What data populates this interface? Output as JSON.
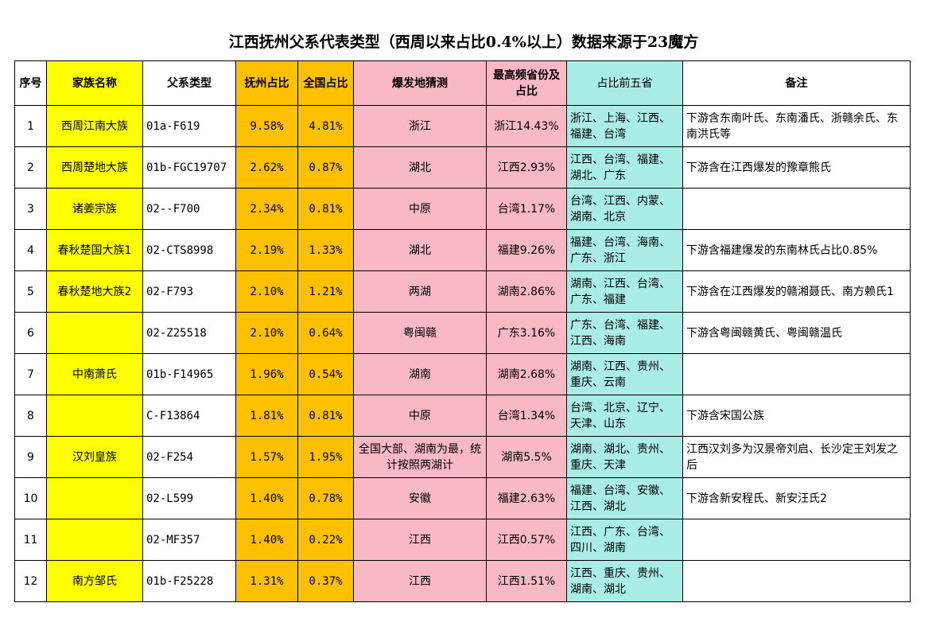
{
  "title": "江西抚州父系代表类型（西周以来占比0.4%以上）数据来源于23魔方",
  "colors": {
    "family_col": "#ffff00",
    "ratio_cols": "#ffc000",
    "origin_cols": "#f8b9c4",
    "top5_col": "#a9ede6"
  },
  "headers": {
    "idx": "序号",
    "family": "家族名称",
    "type": "父系类型",
    "fuzhou_ratio": "抚州占比",
    "national_ratio": "全国占比",
    "origin": "爆发地猜测",
    "top_province": "最高频省份及占比",
    "top5": "占比前五省",
    "note": "备注"
  },
  "rows": [
    {
      "idx": "1",
      "family": "西周江南大族",
      "type": "01a-F619",
      "fuzhou": "9.58%",
      "national": "4.81%",
      "origin": "浙江",
      "top": "浙江14.43%",
      "top5": "浙江、上海、江西、福建、台湾",
      "note": "下游含东南叶氏、东南潘氏、浙赣余氏、东南洪氏等"
    },
    {
      "idx": "2",
      "family": "西周楚地大族",
      "type": "01b-FGC19707",
      "fuzhou": "2.62%",
      "national": "0.87%",
      "origin": "湖北",
      "top": "江西2.93%",
      "top5": "江西、台湾、福建、湖北、广东",
      "note": "下游含在江西爆发的豫章熊氏"
    },
    {
      "idx": "3",
      "family": "诸姜宗族",
      "type": "02--F700",
      "fuzhou": "2.34%",
      "national": "0.81%",
      "origin": "中原",
      "top": "台湾1.17%",
      "top5": "台湾、江西、内蒙、湖南、北京",
      "note": ""
    },
    {
      "idx": "4",
      "family": "春秋楚国大族1",
      "type": "02-CTS8998",
      "fuzhou": "2.19%",
      "national": "1.33%",
      "origin": "湖北",
      "top": "福建9.26%",
      "top5": "福建、台湾、海南、广东、浙江",
      "note": "下游含福建爆发的东南林氏占比0.85%"
    },
    {
      "idx": "5",
      "family": "春秋楚地大族2",
      "type": "02-F793",
      "fuzhou": "2.10%",
      "national": "1.21%",
      "origin": "两湖",
      "top": "湖南2.86%",
      "top5": "湖南、江西、台湾、广东、福建",
      "note": "下游含在江西爆发的赣湘聂氏、南方赖氏1"
    },
    {
      "idx": "6",
      "family": "",
      "type": "02-Z25518",
      "fuzhou": "2.10%",
      "national": "0.64%",
      "origin": "粤闽赣",
      "top": "广东3.16%",
      "top5": "广东、台湾、福建、江西、海南",
      "note": "下游含粤闽赣黄氏、粤闽赣温氏"
    },
    {
      "idx": "7",
      "family": "中南萧氏",
      "type": "01b-F14965",
      "fuzhou": "1.96%",
      "national": "0.54%",
      "origin": "湖南",
      "top": "湖南2.68%",
      "top5": "湖南、江西、贵州、重庆、云南",
      "note": ""
    },
    {
      "idx": "8",
      "family": "",
      "type": "C-F13864",
      "fuzhou": "1.81%",
      "national": "0.81%",
      "origin": "中原",
      "top": "台湾1.34%",
      "top5": "台湾、北京、辽宁、天津、山东",
      "note": "下游含宋国公族"
    },
    {
      "idx": "9",
      "family": "汉刘皇族",
      "type": "02-F254",
      "fuzhou": "1.57%",
      "national": "1.95%",
      "origin": "全国大部、湖南为最，统计按照两湖计",
      "top": "湖南5.5%",
      "top5": "湖南、湖北、贵州、重庆、天津",
      "note": "江西汉刘多为汉景帝刘启、长沙定王刘发之后"
    },
    {
      "idx": "10",
      "family": "",
      "type": "02-L599",
      "fuzhou": "1.40%",
      "national": "0.78%",
      "origin": "安徽",
      "top": "福建2.63%",
      "top5": "福建、台湾、安徽、江西、湖北",
      "note": "下游含新安程氏、新安汪氏2"
    },
    {
      "idx": "11",
      "family": "",
      "type": "02-MF357",
      "fuzhou": "1.40%",
      "national": "0.22%",
      "origin": "江西",
      "top": "江西0.57%",
      "top5": "江西、广东、台湾、四川、湖南",
      "note": ""
    },
    {
      "idx": "12",
      "family": "南方邹氏",
      "type": "01b-F25228",
      "fuzhou": "1.31%",
      "national": "0.37%",
      "origin": "江西",
      "top": "江西1.51%",
      "top5": "江西、重庆、贵州、湖南、湖北",
      "note": ""
    }
  ]
}
